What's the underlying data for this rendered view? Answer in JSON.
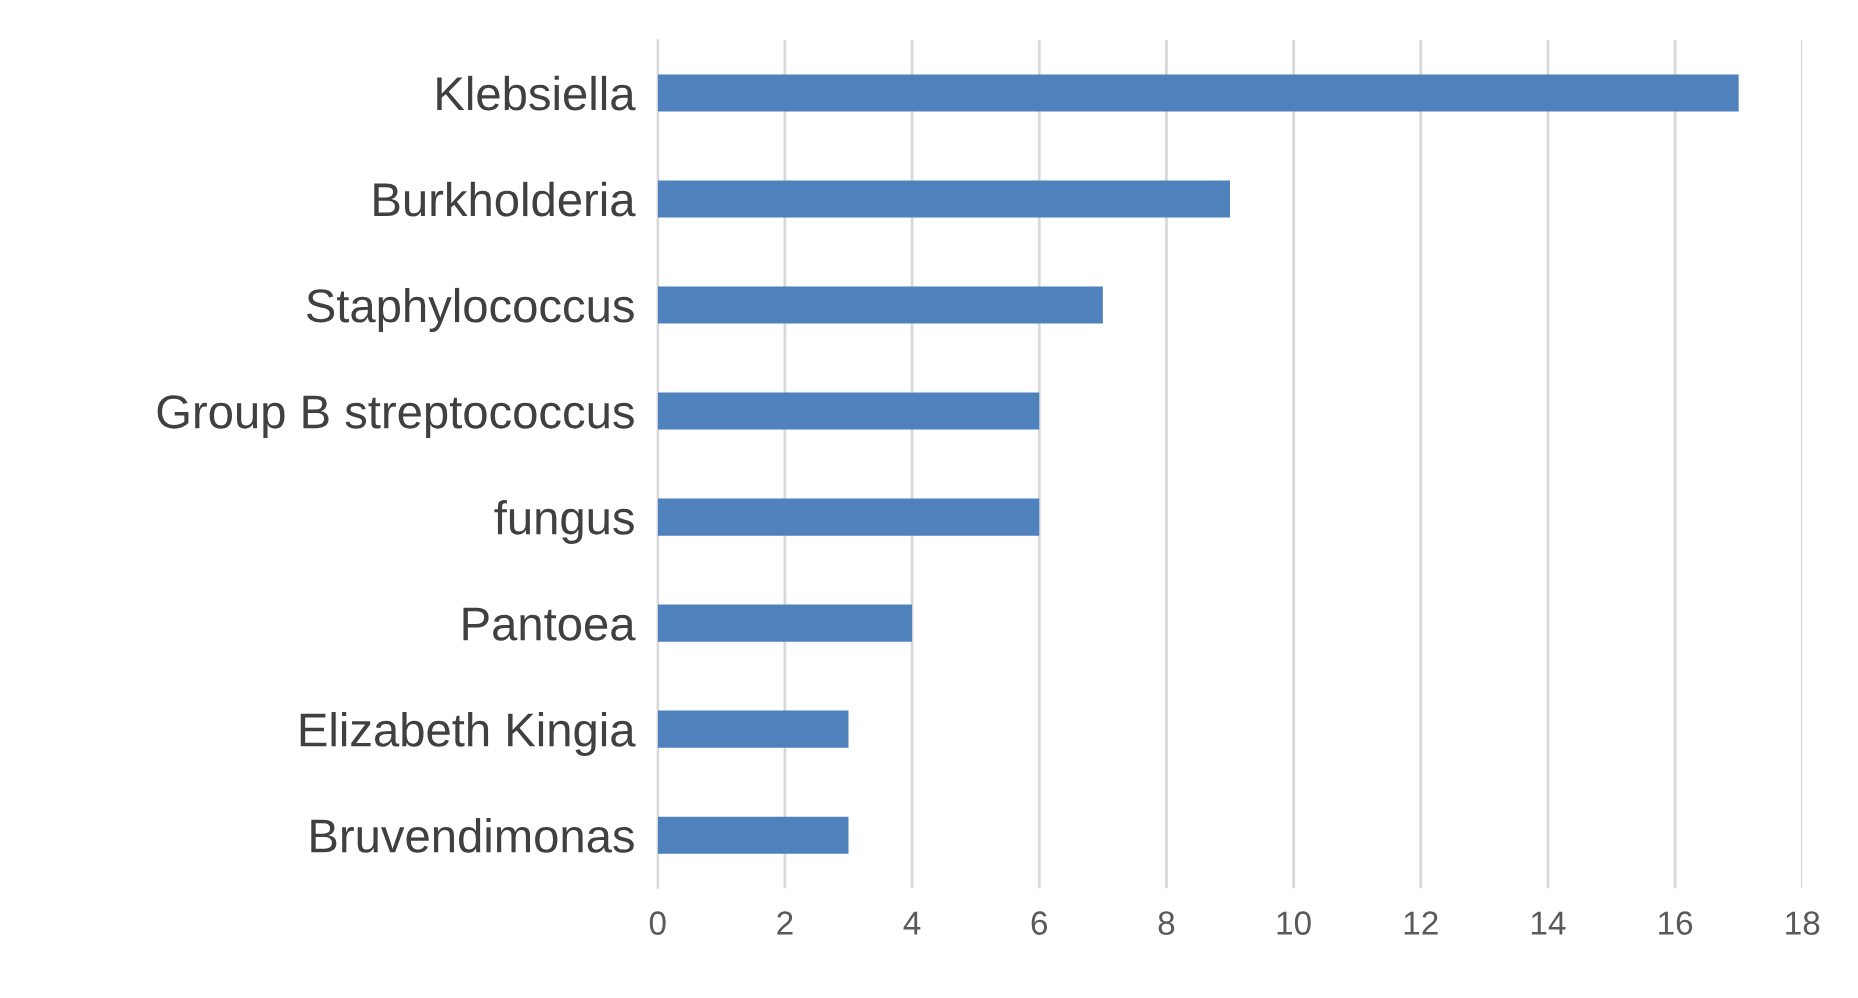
{
  "chart_data": {
    "type": "bar",
    "orientation": "horizontal",
    "categories": [
      "Klebsiella",
      "Burkholderia",
      "Staphylococcus",
      "Group B streptococcus",
      "fungus",
      "Pantoea",
      "Elizabeth Kingia",
      "Bruvendimonas"
    ],
    "values": [
      17,
      9,
      7,
      6,
      6,
      4,
      3,
      3
    ],
    "color": "#4f81bd",
    "xlim": [
      0,
      18
    ],
    "xticks": [
      0,
      2,
      4,
      6,
      8,
      10,
      12,
      14,
      16,
      18
    ],
    "grid": "x",
    "legend": false
  }
}
